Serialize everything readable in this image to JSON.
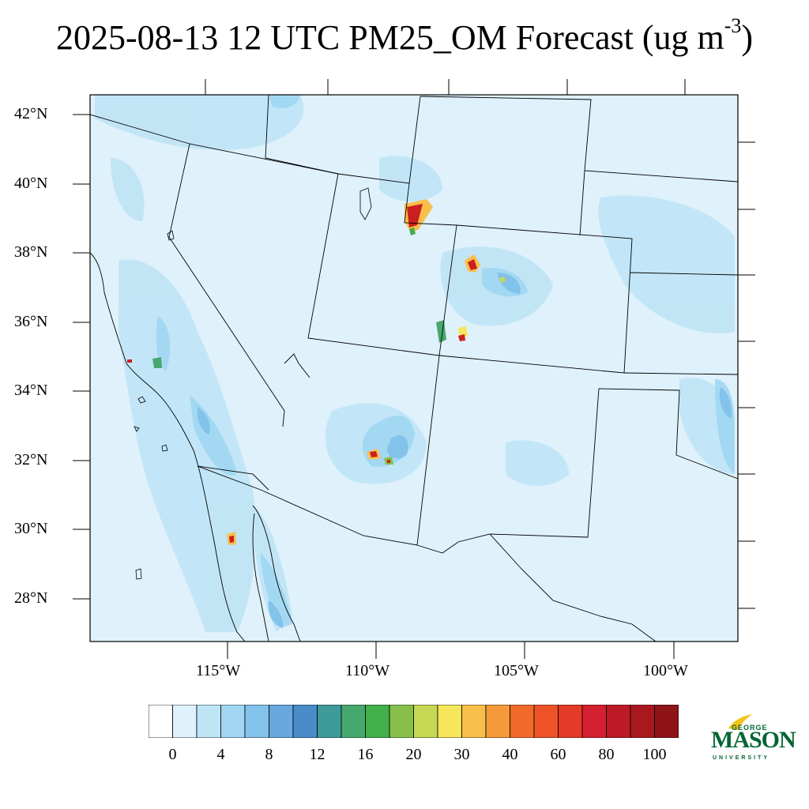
{
  "title": {
    "main": "2025-08-13 12 UTC PM25_OM Forecast (ug m",
    "sup": "-3",
    "close": ")"
  },
  "map": {
    "lat_labels": [
      "42°N",
      "40°N",
      "38°N",
      "36°N",
      "34°N",
      "32°N",
      "30°N",
      "28°N"
    ],
    "lon_labels": [
      "115°W",
      "110°W",
      "105°W",
      "100°W"
    ],
    "background_color": "#dff1fb",
    "hotspot_color": "#cc2020"
  },
  "colorbar": {
    "colors": [
      "#ffffff",
      "#dff1fb",
      "#bfe4f6",
      "#a0d6f2",
      "#83c2ea",
      "#68a8df",
      "#4a8cca",
      "#3f9a9a",
      "#47a86f",
      "#42b04a",
      "#86c04a",
      "#c6d854",
      "#f6e65a",
      "#f8c04a",
      "#f59a3a",
      "#f26a2a",
      "#ee5228",
      "#e43a28",
      "#d42030",
      "#bc1a26",
      "#a8181e",
      "#8e1418"
    ],
    "labels": [
      "0",
      "4",
      "8",
      "12",
      "16",
      "20",
      "30",
      "40",
      "60",
      "80",
      "100"
    ]
  },
  "logo": {
    "line1": "GEORGE",
    "line2": "MASON",
    "line3": "UNIVERSITY"
  }
}
